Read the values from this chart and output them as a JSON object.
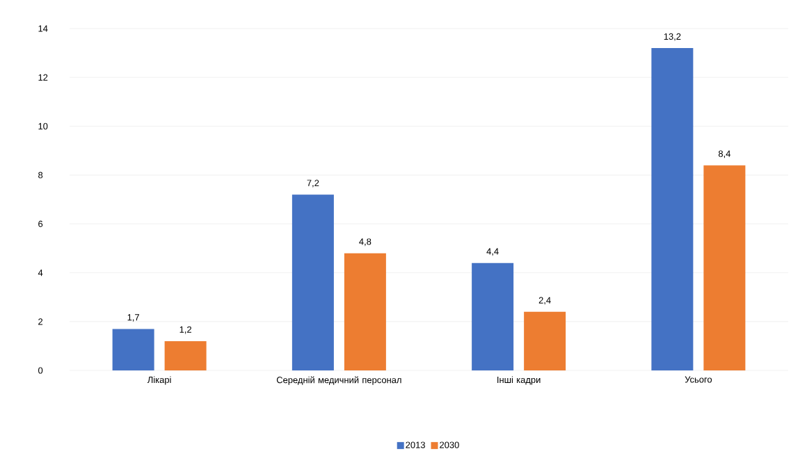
{
  "chart_data": {
    "type": "bar",
    "categories": [
      "Лікарі",
      "Середній медичний персонал",
      "Інші кадри",
      "Усього"
    ],
    "series": [
      {
        "name": "2013",
        "color": "#4472c4",
        "values": [
          1.7,
          7.2,
          4.4,
          13.2
        ],
        "value_labels": [
          "1,7",
          "7,2",
          "4,4",
          "13,2"
        ]
      },
      {
        "name": "2030",
        "color": "#ed7d31",
        "values": [
          1.2,
          4.8,
          2.4,
          8.4
        ],
        "value_labels": [
          "1,2",
          "4,8",
          "2,4",
          "8,4"
        ]
      }
    ],
    "ylim": [
      0,
      14
    ],
    "yticks": [
      0,
      2,
      4,
      6,
      8,
      10,
      12,
      14
    ],
    "grid": "y",
    "legend": "bottom"
  }
}
